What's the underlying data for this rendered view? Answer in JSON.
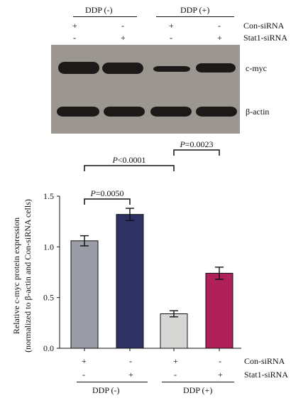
{
  "blot": {
    "groups": [
      {
        "label": "DDP (-)",
        "cx": 144
      },
      {
        "label": "DDP (+)",
        "cx": 276
      }
    ],
    "rows": [
      {
        "name": "Con-siRNA",
        "signs": [
          "+",
          "-",
          "+",
          "-"
        ]
      },
      {
        "name": "Stat1-siRNA",
        "signs": [
          "-",
          "+",
          "-",
          "+"
        ]
      }
    ],
    "panels": [
      {
        "label": "c-myc",
        "band_intensity": [
          0.85,
          0.85,
          0.45,
          0.75
        ]
      },
      {
        "label": "β-actin",
        "band_intensity": [
          0.8,
          0.8,
          0.8,
          0.8
        ]
      }
    ]
  },
  "bar_treatments": {
    "rows": [
      {
        "name": "Con-siRNA",
        "signs": [
          "+",
          "-",
          "+",
          "-"
        ]
      },
      {
        "name": "Stat1-siRNA",
        "signs": [
          "-",
          "+",
          "-",
          "+"
        ]
      }
    ],
    "groups": [
      {
        "label": "DDP (-)"
      },
      {
        "label": "DDP (+)"
      }
    ]
  },
  "chart_data": {
    "type": "bar",
    "categories": [
      "DDP(-) Con-siRNA",
      "DDP(-) Stat1-siRNA",
      "DDP(+) Con-siRNA",
      "DDP(+) Stat1-siRNA"
    ],
    "values": [
      1.06,
      1.32,
      0.34,
      0.74
    ],
    "errors": [
      0.05,
      0.06,
      0.03,
      0.06
    ],
    "colors": [
      "#9a9ca6",
      "#2e3163",
      "#d6d6d4",
      "#b0215a"
    ],
    "ylabel": "Relative c-myc protein expression",
    "ylabel2": "(normalized to β-actin and Con-siRNA cells)",
    "ylim": [
      0,
      1.5
    ],
    "yticks": [
      "0.0",
      "0.5",
      "1.0",
      "1.5"
    ],
    "significance": [
      {
        "from": 0,
        "to": 1,
        "label": "=0.0050"
      },
      {
        "from": 0,
        "to": 2,
        "label": "<0.0001"
      },
      {
        "from": 2,
        "to": 3,
        "label": "=0.0023"
      }
    ]
  }
}
